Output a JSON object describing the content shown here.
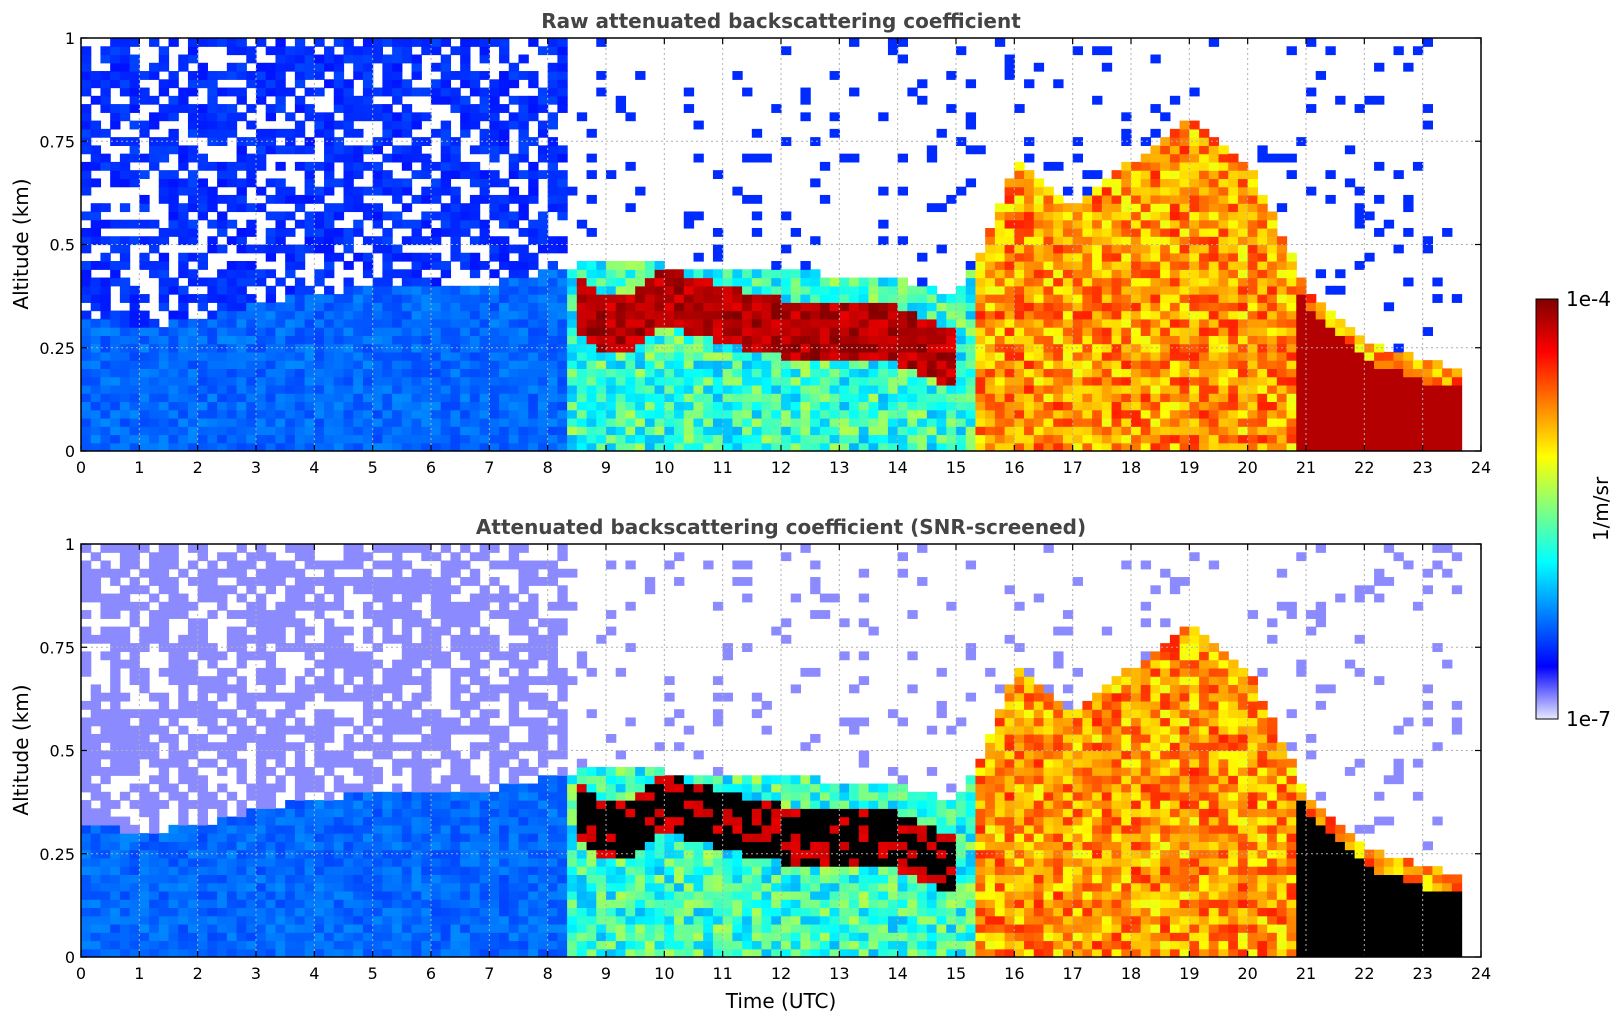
{
  "chart_data": [
    {
      "type": "heatmap",
      "title": "Raw attenuated backscattering coefficient",
      "xlabel": "",
      "ylabel": "Altitude (km)",
      "xlim": [
        0,
        24
      ],
      "ylim": [
        0,
        1
      ],
      "x_ticks": [
        0,
        1,
        2,
        3,
        4,
        5,
        6,
        7,
        8,
        9,
        10,
        11,
        12,
        13,
        14,
        15,
        16,
        17,
        18,
        19,
        20,
        21,
        22,
        23,
        24
      ],
      "y_ticks": [
        0,
        0.25,
        0.5,
        0.75,
        1
      ],
      "y_tick_labels": [
        "0",
        "0.25",
        "0.5",
        "0.75",
        "1"
      ],
      "grid": true,
      "screened": false,
      "features": {
        "boundary_layer_top_km": [
          [
            0,
            0.33
          ],
          [
            1,
            0.3
          ],
          [
            2,
            0.32
          ],
          [
            3,
            0.36
          ],
          [
            4,
            0.38
          ],
          [
            5,
            0.4
          ],
          [
            6,
            0.4
          ],
          [
            7,
            0.4
          ],
          [
            8,
            0.44
          ],
          [
            9,
            0.46
          ],
          [
            10,
            0.45
          ],
          [
            11,
            0.45
          ],
          [
            12,
            0.45
          ],
          [
            13,
            0.42
          ],
          [
            14,
            0.42
          ],
          [
            15,
            0.38
          ],
          [
            15.5,
            0.5
          ],
          [
            16,
            0.7
          ],
          [
            17,
            0.6
          ],
          [
            18,
            0.7
          ],
          [
            19,
            0.8
          ],
          [
            20,
            0.7
          ],
          [
            21,
            0.4
          ],
          [
            22,
            0.27
          ],
          [
            23,
            0.22
          ],
          [
            23.6,
            0.2
          ]
        ],
        "aerosol_layer_center_km": [
          [
            8.5,
            0.35
          ],
          [
            9,
            0.3
          ],
          [
            9.5,
            0.32
          ],
          [
            10,
            0.38
          ],
          [
            11,
            0.33
          ],
          [
            12,
            0.3
          ],
          [
            13,
            0.3
          ],
          [
            14,
            0.28
          ],
          [
            15,
            0.22
          ]
        ],
        "data_end_hour": 23.65
      }
    },
    {
      "type": "heatmap",
      "title": "Attenuated backscattering coefficient (SNR-screened)",
      "xlabel": "Time (UTC)",
      "ylabel": "Altitude (km)",
      "xlim": [
        0,
        24
      ],
      "ylim": [
        0,
        1
      ],
      "x_ticks": [
        0,
        1,
        2,
        3,
        4,
        5,
        6,
        7,
        8,
        9,
        10,
        11,
        12,
        13,
        14,
        15,
        16,
        17,
        18,
        19,
        20,
        21,
        22,
        23,
        24
      ],
      "y_ticks": [
        0,
        0.25,
        0.5,
        0.75,
        1
      ],
      "y_tick_labels": [
        "0",
        "0.25",
        "0.5",
        "0.75",
        "1"
      ],
      "grid": true,
      "screened": true,
      "features": {
        "boundary_layer_top_km": [
          [
            0,
            0.33
          ],
          [
            1,
            0.3
          ],
          [
            2,
            0.32
          ],
          [
            3,
            0.36
          ],
          [
            4,
            0.38
          ],
          [
            5,
            0.4
          ],
          [
            6,
            0.4
          ],
          [
            7,
            0.4
          ],
          [
            8,
            0.44
          ],
          [
            9,
            0.46
          ],
          [
            10,
            0.45
          ],
          [
            11,
            0.45
          ],
          [
            12,
            0.45
          ],
          [
            13,
            0.42
          ],
          [
            14,
            0.42
          ],
          [
            15,
            0.38
          ],
          [
            15.5,
            0.5
          ],
          [
            16,
            0.7
          ],
          [
            17,
            0.6
          ],
          [
            18,
            0.7
          ],
          [
            19,
            0.8
          ],
          [
            20,
            0.7
          ],
          [
            21,
            0.4
          ],
          [
            22,
            0.27
          ],
          [
            23,
            0.22
          ],
          [
            23.6,
            0.2
          ]
        ],
        "aerosol_layer_center_km": [
          [
            8.5,
            0.35
          ],
          [
            9,
            0.3
          ],
          [
            9.5,
            0.32
          ],
          [
            10,
            0.38
          ],
          [
            11,
            0.33
          ],
          [
            12,
            0.3
          ],
          [
            13,
            0.3
          ],
          [
            14,
            0.28
          ],
          [
            15,
            0.22
          ]
        ],
        "data_end_hour": 23.65
      }
    }
  ],
  "colorbar": {
    "label": "1/m/sr",
    "min_label": "1e-7",
    "max_label": "1e-4",
    "scale": "log",
    "colormap": "jet",
    "colors": [
      "#e8e8ff",
      "#0000ff",
      "#0080ff",
      "#00ffff",
      "#80ff80",
      "#ffff00",
      "#ff8000",
      "#ff0000",
      "#800000"
    ]
  }
}
